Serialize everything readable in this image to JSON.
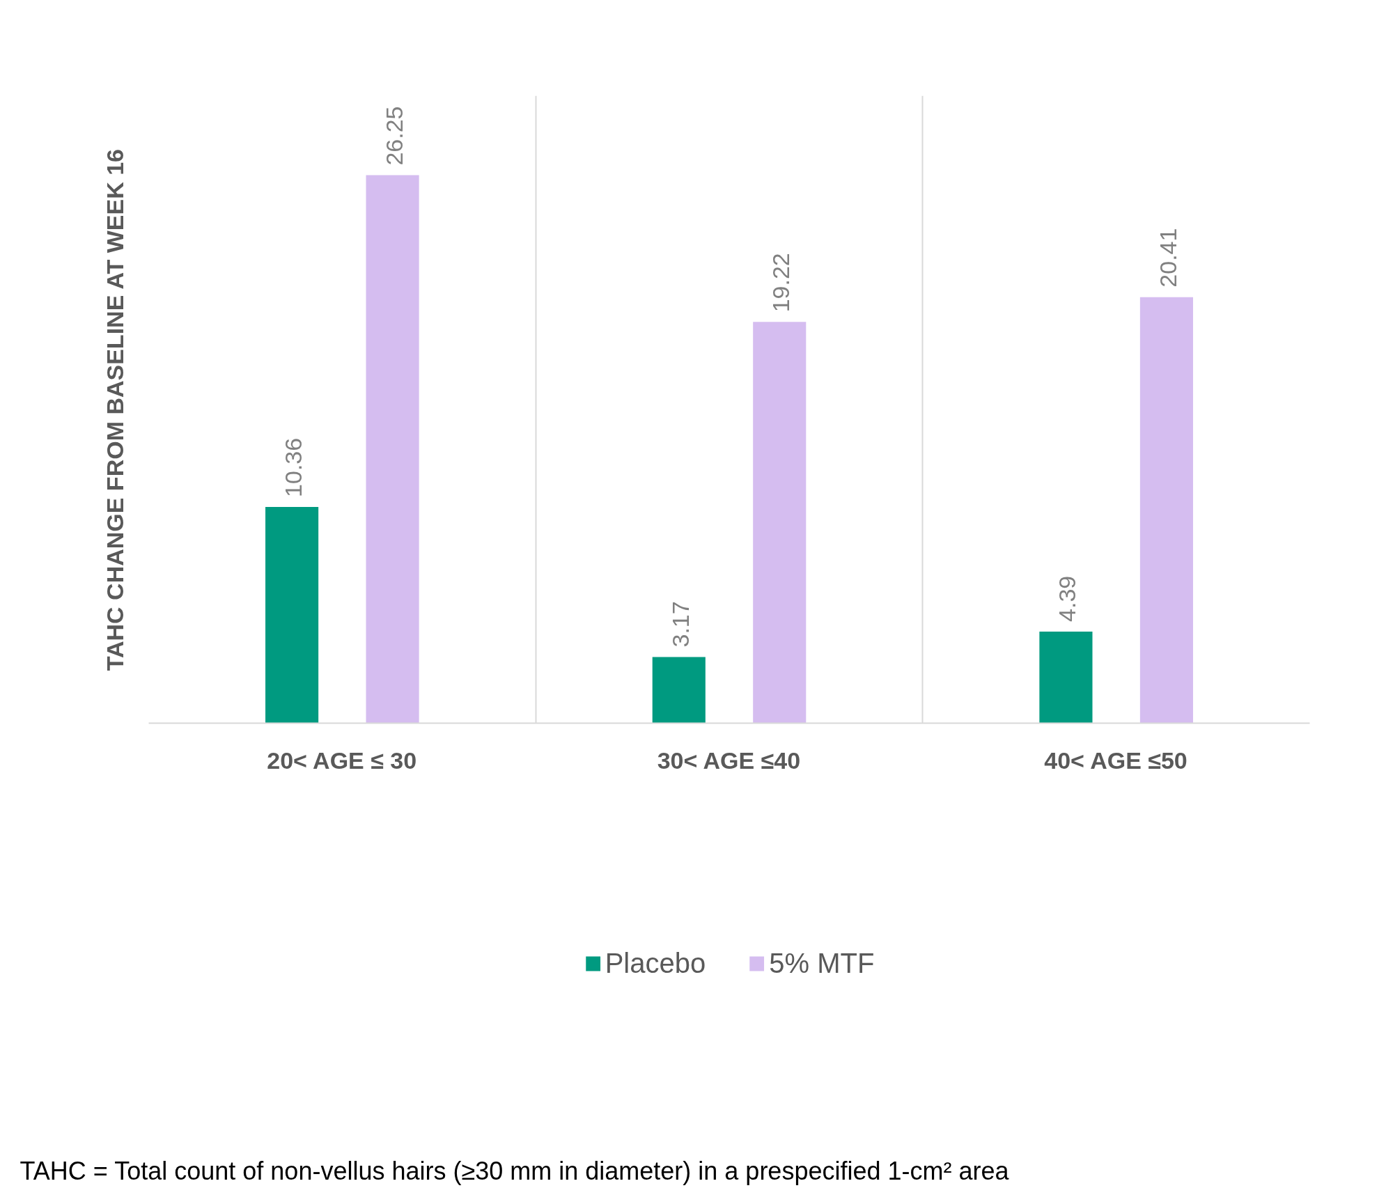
{
  "chart_data": {
    "type": "bar",
    "ylabel": "TAHC CHANGE FROM BASELINE AT WEEK 16",
    "categories": [
      "20< AGE ≤ 30",
      "30< AGE ≤40",
      "40< AGE ≤50"
    ],
    "series": [
      {
        "name": "Placebo",
        "color": "#009a80",
        "values": [
          10.36,
          3.17,
          4.39
        ]
      },
      {
        "name": "5% MTF",
        "color": "#d5bdf0",
        "values": [
          26.25,
          19.22,
          20.41
        ]
      }
    ],
    "data_labels": true,
    "grid": "x",
    "legend": "bottom",
    "annotations": [
      "TAHC = Total count of non-vellus hairs (≥30 mm in diameter) in a prespecified 1-cm² area"
    ]
  }
}
